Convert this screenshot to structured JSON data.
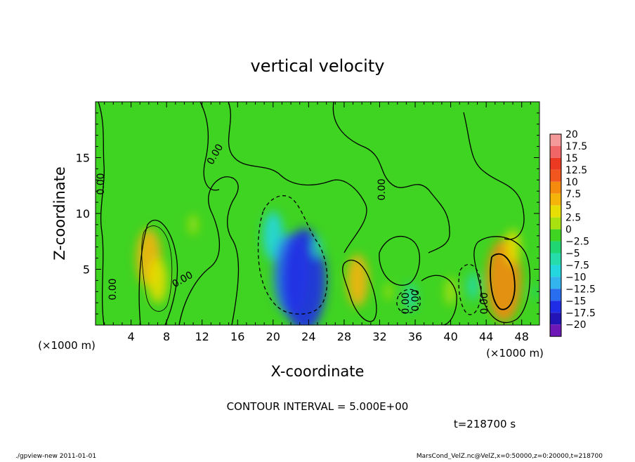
{
  "chart_data": {
    "type": "heatmap",
    "title": "vertical velocity",
    "xlabel": "X-coordinate",
    "ylabel": "Z-coordinate",
    "x_unit": "(×1000 m)",
    "y_unit": "(×1000 m)",
    "xlim": [
      0,
      50
    ],
    "ylim": [
      0,
      20
    ],
    "x_ticks": [
      4,
      8,
      12,
      16,
      20,
      24,
      28,
      32,
      36,
      40,
      44,
      48
    ],
    "y_ticks": [
      5,
      10,
      15
    ],
    "grid": false,
    "colorbar": {
      "labels": [
        "20",
        "17.5",
        "15",
        "12.5",
        "10",
        "7.5",
        "5",
        "2.5",
        "0",
        "−2.5",
        "−5",
        "−7.5",
        "−10",
        "−12.5",
        "−15",
        "−17.5",
        "−20"
      ],
      "levels": [
        20,
        17.5,
        15,
        12.5,
        10,
        7.5,
        5,
        2.5,
        0,
        -2.5,
        -5,
        -7.5,
        -10,
        -12.5,
        -15,
        -17.5
      ],
      "colors": [
        "#f49999",
        "#f06666",
        "#ec3a22",
        "#f0561e",
        "#f48a0e",
        "#f5b409",
        "#e6de04",
        "#a8e010",
        "#3fd322",
        "#20d672",
        "#26dcaa",
        "#24d6de",
        "#34b4ee",
        "#2a6ef0",
        "#1f2ee6",
        "#2314b8",
        "#6e18b8"
      ]
    },
    "cells": [
      {
        "x": 6,
        "z": 6,
        "value": 8.5
      },
      {
        "x": 7,
        "z": 4,
        "value": 6.5
      },
      {
        "x": 11,
        "z": 9,
        "value": 3
      },
      {
        "x": 20,
        "z": 8,
        "value": -7
      },
      {
        "x": 22,
        "z": 4.5,
        "value": -12
      },
      {
        "x": 23.5,
        "z": 4,
        "value": -15
      },
      {
        "x": 25,
        "z": 7,
        "value": -3
      },
      {
        "x": 29.5,
        "z": 4,
        "value": 7.5
      },
      {
        "x": 33,
        "z": 3,
        "value": 2.5
      },
      {
        "x": 35.5,
        "z": 2.5,
        "value": -4
      },
      {
        "x": 40,
        "z": 3,
        "value": 4
      },
      {
        "x": 42.5,
        "z": 3.5,
        "value": -4
      },
      {
        "x": 46,
        "z": 4,
        "value": 12
      },
      {
        "x": 47,
        "z": 7,
        "value": 5
      },
      {
        "x": 49.5,
        "z": 3,
        "value": -2
      }
    ],
    "contour_labels": [
      "0.00",
      "0.00",
      "0.00",
      "0.00",
      "0.00",
      "0.00",
      "0.00",
      "0.00"
    ]
  },
  "footer": {
    "contour_interval": "CONTOUR INTERVAL = 5.000E+00",
    "time": "t=218700  s",
    "left": "./gpview-new   2011-01-01",
    "right": "MarsCond_VelZ.nc@VelZ,x=0:50000,z=0:20000,t=218700"
  },
  "colors": {
    "background": "#3fd322",
    "contour": "#000000"
  }
}
